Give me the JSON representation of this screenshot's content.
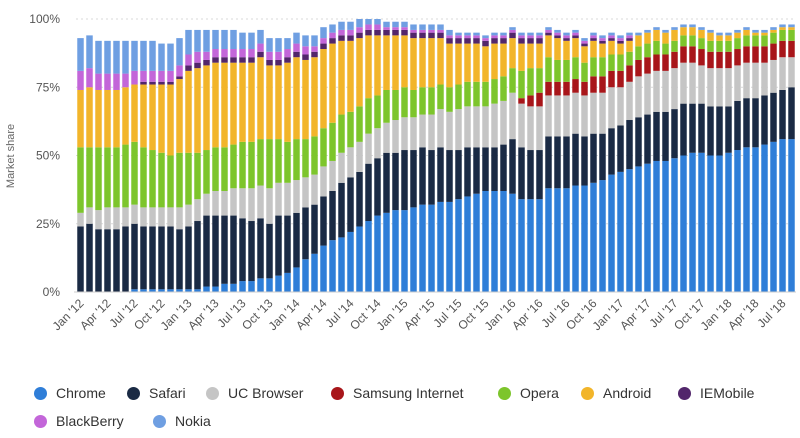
{
  "chart_data": {
    "type": "bar",
    "stacked": true,
    "ylabel": "Market share",
    "xlabel": "",
    "title": "",
    "ylim": [
      0,
      100
    ],
    "y_ticks": [
      "0%",
      "25%",
      "50%",
      "75%",
      "100%"
    ],
    "grid": "horizontal dashed",
    "legend_position": "bottom",
    "x_tick_labels": [
      "Jan '12",
      "Apr '12",
      "Jul '12",
      "Oct '12",
      "Jan '13",
      "Apr '13",
      "Jul '13",
      "Oct '13",
      "Jan '14",
      "Apr '14",
      "Jul '14",
      "Oct '14",
      "Jan '15",
      "Apr '15",
      "Jul '15",
      "Oct '15",
      "Jan '16",
      "Apr '16",
      "Jul '16",
      "Oct '16",
      "Jan '17",
      "Apr '17",
      "Jul '17",
      "Oct '17",
      "Jan '18",
      "Apr '18",
      "Jul '18"
    ],
    "categories": [
      "Jan '12",
      "Feb '12",
      "Mar '12",
      "Apr '12",
      "May '12",
      "Jun '12",
      "Jul '12",
      "Aug '12",
      "Sep '12",
      "Oct '12",
      "Nov '12",
      "Dec '12",
      "Jan '13",
      "Feb '13",
      "Mar '13",
      "Apr '13",
      "May '13",
      "Jun '13",
      "Jul '13",
      "Aug '13",
      "Sep '13",
      "Oct '13",
      "Nov '13",
      "Dec '13",
      "Jan '14",
      "Feb '14",
      "Mar '14",
      "Apr '14",
      "May '14",
      "Jun '14",
      "Jul '14",
      "Aug '14",
      "Sep '14",
      "Oct '14",
      "Nov '14",
      "Dec '14",
      "Jan '15",
      "Feb '15",
      "Mar '15",
      "Apr '15",
      "May '15",
      "Jun '15",
      "Jul '15",
      "Aug '15",
      "Sep '15",
      "Oct '15",
      "Nov '15",
      "Dec '15",
      "Jan '16",
      "Feb '16",
      "Mar '16",
      "Apr '16",
      "May '16",
      "Jun '16",
      "Jul '16",
      "Aug '16",
      "Sep '16",
      "Oct '16",
      "Nov '16",
      "Dec '16",
      "Jan '17",
      "Feb '17",
      "Mar '17",
      "Apr '17",
      "May '17",
      "Jun '17",
      "Jul '17",
      "Aug '17",
      "Sep '17",
      "Oct '17",
      "Nov '17",
      "Dec '17",
      "Jan '18",
      "Feb '18",
      "Mar '18",
      "Apr '18",
      "May '18",
      "Jun '18",
      "Jul '18",
      "Aug '18"
    ],
    "series": [
      {
        "name": "Chrome",
        "color": "#2f7ed8",
        "values": [
          0,
          0,
          0,
          0,
          0,
          0,
          1,
          1,
          1,
          1,
          1,
          1,
          1,
          1,
          2,
          2,
          3,
          3,
          4,
          4,
          5,
          5,
          6,
          7,
          9,
          12,
          14,
          17,
          19,
          20,
          22,
          24,
          26,
          28,
          29,
          30,
          30,
          31,
          32,
          32,
          33,
          33,
          34,
          35,
          36,
          37,
          37,
          37,
          36,
          34,
          34,
          34,
          38,
          38,
          38,
          39,
          39,
          40,
          41,
          43,
          44,
          45,
          46,
          47,
          48,
          48,
          49,
          50,
          51,
          51,
          50,
          50,
          51,
          52,
          53,
          53,
          54,
          55,
          56,
          56
        ]
      },
      {
        "name": "Safari",
        "color": "#1a2a44",
        "values": [
          24,
          25,
          23,
          23,
          23,
          24,
          24,
          23,
          23,
          23,
          23,
          22,
          23,
          25,
          26,
          26,
          25,
          25,
          23,
          22,
          22,
          20,
          22,
          21,
          20,
          19,
          18,
          18,
          18,
          20,
          20,
          20,
          21,
          21,
          22,
          21,
          22,
          21,
          21,
          20,
          20,
          19,
          18,
          18,
          17,
          16,
          16,
          17,
          20,
          19,
          18,
          18,
          19,
          19,
          19,
          19,
          18,
          18,
          17,
          17,
          17,
          18,
          18,
          18,
          18,
          18,
          18,
          19,
          18,
          18,
          18,
          18,
          17,
          18,
          18,
          18,
          18,
          18,
          18,
          19
        ]
      },
      {
        "name": "UC Browser",
        "color": "#c5c5c5",
        "values": [
          5,
          6,
          7,
          8,
          8,
          7,
          7,
          7,
          7,
          7,
          7,
          8,
          8,
          8,
          8,
          9,
          9,
          10,
          11,
          12,
          12,
          13,
          12,
          12,
          12,
          11,
          11,
          11,
          11,
          11,
          11,
          11,
          11,
          11,
          11,
          12,
          12,
          12,
          12,
          13,
          14,
          14,
          15,
          15,
          15,
          15,
          16,
          16,
          17,
          16,
          16,
          16,
          15,
          15,
          15,
          15,
          15,
          15,
          15,
          15,
          14,
          14,
          15,
          15,
          15,
          15,
          15,
          15,
          15,
          14,
          14,
          14,
          14,
          13,
          13,
          13,
          12,
          12,
          12,
          11
        ]
      },
      {
        "name": "Samsung Internet",
        "color": "#a8161a",
        "values": [
          0,
          0,
          0,
          0,
          0,
          0,
          0,
          0,
          0,
          0,
          0,
          0,
          0,
          0,
          0,
          0,
          0,
          0,
          0,
          0,
          0,
          0,
          0,
          0,
          0,
          0,
          0,
          0,
          0,
          0,
          0,
          0,
          0,
          0,
          0,
          0,
          0,
          0,
          0,
          0,
          0,
          0,
          0,
          0,
          0,
          0,
          0,
          0,
          0,
          2,
          4,
          5,
          5,
          5,
          5,
          5,
          5,
          6,
          6,
          6,
          6,
          6,
          6,
          6,
          6,
          6,
          6,
          6,
          6,
          6,
          6,
          6,
          6,
          6,
          6,
          6,
          6,
          6,
          6,
          6
        ]
      },
      {
        "name": "Opera",
        "color": "#7dc52c",
        "values": [
          24,
          22,
          23,
          22,
          22,
          23,
          23,
          22,
          21,
          20,
          19,
          20,
          19,
          17,
          16,
          16,
          16,
          16,
          17,
          17,
          17,
          18,
          16,
          15,
          15,
          14,
          14,
          14,
          14,
          14,
          13,
          13,
          13,
          12,
          12,
          11,
          11,
          10,
          10,
          10,
          9,
          9,
          9,
          9,
          9,
          9,
          9,
          9,
          9,
          10,
          10,
          9,
          9,
          8,
          8,
          8,
          7,
          7,
          7,
          6,
          6,
          5,
          5,
          5,
          5,
          4,
          4,
          4,
          4,
          4,
          4,
          4,
          4,
          4,
          4,
          4,
          4,
          4,
          4,
          4
        ]
      },
      {
        "name": "Android",
        "color": "#f2b52a",
        "values": [
          21,
          22,
          21,
          21,
          21,
          21,
          21,
          23,
          24,
          25,
          26,
          27,
          30,
          31,
          31,
          31,
          31,
          30,
          29,
          29,
          30,
          27,
          27,
          29,
          30,
          29,
          29,
          29,
          29,
          27,
          26,
          25,
          23,
          22,
          20,
          20,
          19,
          19,
          18,
          18,
          17,
          16,
          15,
          14,
          14,
          13,
          13,
          12,
          11,
          10,
          9,
          9,
          8,
          8,
          7,
          7,
          6,
          6,
          5,
          5,
          4,
          4,
          4,
          4,
          4,
          4,
          4,
          3,
          3,
          3,
          3,
          2,
          2,
          2,
          2,
          1,
          1,
          1,
          1,
          1
        ]
      },
      {
        "name": "IEMobile",
        "color": "#52266b",
        "values": [
          0,
          0,
          0,
          0,
          0,
          0,
          0,
          1,
          1,
          1,
          1,
          1,
          2,
          2,
          2,
          2,
          2,
          2,
          2,
          2,
          2,
          2,
          2,
          2,
          2,
          2,
          2,
          2,
          2,
          2,
          2,
          2,
          2,
          2,
          2,
          2,
          2,
          2,
          2,
          2,
          2,
          2,
          2,
          2,
          2,
          2,
          2,
          2,
          2,
          2,
          2,
          2,
          1,
          1,
          1,
          1,
          1,
          1,
          1,
          1,
          1,
          1,
          0,
          0,
          0,
          0,
          0,
          0,
          0,
          0,
          0,
          0,
          0,
          0,
          0,
          0,
          0,
          0,
          0,
          0
        ]
      },
      {
        "name": "BlackBerry",
        "color": "#c366d9",
        "values": [
          7,
          7,
          6,
          6,
          6,
          5,
          5,
          4,
          4,
          4,
          4,
          4,
          4,
          4,
          3,
          3,
          3,
          3,
          3,
          3,
          3,
          3,
          3,
          3,
          3,
          3,
          2,
          2,
          2,
          2,
          2,
          2,
          2,
          2,
          1,
          1,
          1,
          1,
          1,
          1,
          1,
          1,
          1,
          1,
          1,
          1,
          1,
          1,
          1,
          1,
          1,
          1,
          1,
          1,
          1,
          1,
          1,
          1,
          1,
          1,
          1,
          1,
          0,
          0,
          0,
          0,
          0,
          0,
          0,
          0,
          0,
          0,
          0,
          0,
          0,
          0,
          0,
          0,
          0,
          0
        ]
      },
      {
        "name": "Nokia",
        "color": "#6f9fe2",
        "values": [
          12,
          12,
          12,
          12,
          12,
          12,
          11,
          11,
          11,
          10,
          10,
          10,
          9,
          8,
          8,
          7,
          7,
          7,
          6,
          6,
          5,
          5,
          5,
          4,
          4,
          4,
          4,
          4,
          3,
          3,
          3,
          3,
          2,
          2,
          2,
          2,
          2,
          2,
          2,
          2,
          2,
          2,
          1,
          1,
          1,
          1,
          1,
          1,
          1,
          1,
          1,
          1,
          1,
          1,
          1,
          1,
          1,
          1,
          1,
          1,
          1,
          1,
          1,
          1,
          1,
          1,
          1,
          1,
          1,
          1,
          1,
          1,
          1,
          1,
          1,
          1,
          1,
          1,
          1,
          1
        ]
      }
    ]
  },
  "legend": [
    {
      "label": "Chrome",
      "color": "#2f7ed8"
    },
    {
      "label": "Safari",
      "color": "#1a2a44"
    },
    {
      "label": "UC Browser",
      "color": "#c5c5c5"
    },
    {
      "label": "Samsung Internet",
      "color": "#a8161a"
    },
    {
      "label": "Opera",
      "color": "#7dc52c"
    },
    {
      "label": "Android",
      "color": "#f2b52a"
    },
    {
      "label": "IEMobile",
      "color": "#52266b"
    },
    {
      "label": "BlackBerry",
      "color": "#c366d9"
    },
    {
      "label": "Nokia",
      "color": "#6f9fe2"
    }
  ]
}
